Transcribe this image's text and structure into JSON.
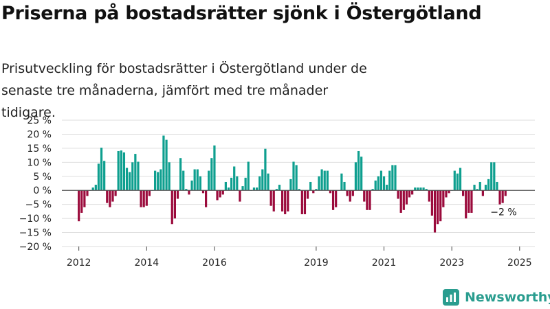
{
  "title": "Priserna på bostadsrätter sjönk i Östergötland",
  "subtitle": "Prisutveckling för bostadsrätter i Östergötland under de senaste tre månaderna, jämfört med tre månader tidigare.",
  "brand": {
    "name": "Newsworthy",
    "color": "#2a9d8f",
    "icon": "newsworthy-logo-icon"
  },
  "colors": {
    "positive": "#0e9f8f",
    "negative": "#9b0b3c",
    "grid": "#dddddd",
    "zero": "#555555"
  },
  "chart_data": {
    "type": "bar",
    "ylim": [
      -20,
      25
    ],
    "y_ticks": [
      25,
      20,
      15,
      10,
      5,
      0,
      -5,
      -10,
      -15,
      -20
    ],
    "y_tick_labels": [
      "25 %",
      "20 %",
      "15 %",
      "10 %",
      "5 %",
      "0 %",
      "−5 %",
      "−10 %",
      "−15 %",
      "−20 %"
    ],
    "x_tick_labels": [
      {
        "label": "2012",
        "x": 2012.0
      },
      {
        "label": "2014",
        "x": 2014.0
      },
      {
        "label": "2016",
        "x": 2016.0
      },
      {
        "label": "2019",
        "x": 2019.0
      },
      {
        "label": "2021",
        "x": 2021.0
      },
      {
        "label": "2023",
        "x": 2023.0
      },
      {
        "label": "2025",
        "x": 2025.0
      }
    ],
    "xlim": [
      2011.5,
      2025.45
    ],
    "grid": true,
    "x_start": "2012-01",
    "period": "month",
    "values": [
      -11,
      -8,
      -6,
      -2,
      0,
      1,
      2,
      9.5,
      15.2,
      10.5,
      -4.5,
      -6,
      -4,
      -2,
      14,
      14.2,
      13.5,
      8,
      6.5,
      10,
      13,
      10.2,
      -6,
      -6,
      -5.5,
      -2,
      0,
      7,
      6.5,
      7.5,
      19.5,
      18,
      10,
      -12,
      -10,
      -3,
      11.5,
      7,
      0.5,
      -1.5,
      3.5,
      7.5,
      7.5,
      5,
      -1,
      -6,
      7,
      11.5,
      16,
      -3.5,
      -2.5,
      -1.5,
      3,
      1,
      4.5,
      8.5,
      5,
      -4,
      1.5,
      4.5,
      10.2,
      0,
      1,
      1,
      5,
      7.5,
      14.8,
      6,
      -5.5,
      -7.5,
      0.5,
      2,
      -7.5,
      -8.5,
      -7.5,
      4,
      10.2,
      9,
      0.5,
      -8.5,
      -8.5,
      -3,
      3,
      -1,
      0.5,
      5,
      7.5,
      7,
      7,
      -1,
      -7,
      -6,
      0,
      6,
      3,
      -2,
      -4,
      -2,
      10,
      14,
      12,
      -4,
      -7,
      -7,
      0.5,
      3.5,
      5,
      7,
      5,
      2,
      7,
      9,
      9,
      -3,
      -8,
      -7,
      -5,
      -2.5,
      -1.5,
      1,
      1,
      1,
      1,
      0.5,
      -4,
      -9,
      -15,
      -12,
      -11,
      -6,
      -2.5,
      -1,
      0,
      7,
      6,
      8,
      -2,
      -10,
      -8,
      -8,
      2,
      0.5,
      3,
      -2,
      2,
      4,
      10,
      10,
      3,
      -5,
      -4.5,
      -2
    ],
    "annotation": {
      "text": "−2 %",
      "index": -1
    }
  }
}
